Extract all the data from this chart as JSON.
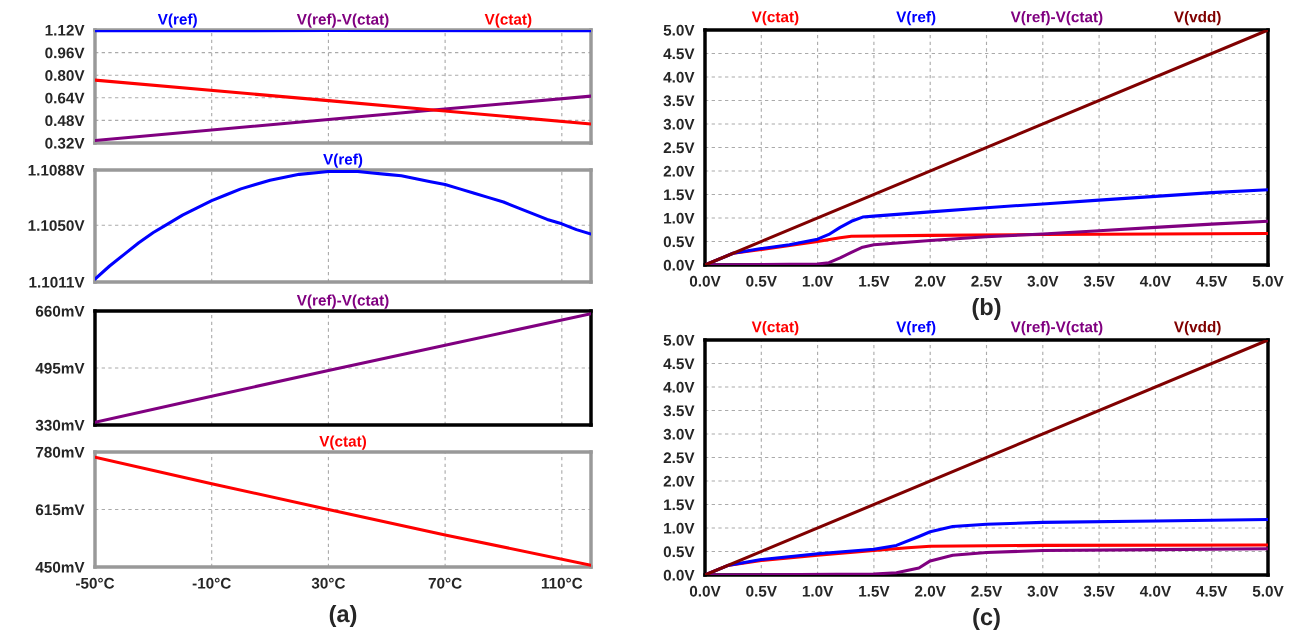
{
  "chart_data": [
    {
      "type": "line",
      "legend": "top",
      "grid": true,
      "line_style": "solid",
      "tick_labels": "y",
      "xlim": [
        -50,
        120
      ],
      "xticks": [
        {
          "value": -50,
          "label": null
        },
        {
          "value": -10,
          "label": null
        },
        {
          "value": 30,
          "label": null
        },
        {
          "value": 70,
          "label": null
        },
        {
          "value": 110,
          "label": null
        }
      ],
      "ylim": [
        0.32,
        1.12
      ],
      "yticks": [
        {
          "value": 0.32,
          "label": "0.32V"
        },
        {
          "value": 0.48,
          "label": "0.48V"
        },
        {
          "value": 0.64,
          "label": "0.64V"
        },
        {
          "value": 0.8,
          "label": "0.80V"
        },
        {
          "value": 0.96,
          "label": "0.96V"
        },
        {
          "value": 1.12,
          "label": "1.12V"
        }
      ],
      "series": [
        {
          "name": "V(ref)",
          "color": "#0000ff",
          "x": [
            -50,
            30,
            120
          ],
          "values": [
            1.115,
            1.116,
            1.115
          ]
        },
        {
          "name": "V(ref)-V(ctat)",
          "color": "#800080",
          "x": [
            -50,
            30,
            66,
            120
          ],
          "values": [
            0.338,
            0.486,
            0.553,
            0.652
          ]
        },
        {
          "name": "V(ctat)",
          "color": "#ff0000",
          "x": [
            -50,
            30,
            66,
            120
          ],
          "values": [
            0.765,
            0.62,
            0.553,
            0.455
          ]
        }
      ]
    },
    {
      "type": "line",
      "legend": "top",
      "grid": true,
      "line_style": "solid",
      "tick_labels": "y",
      "xlim": [
        -50,
        120
      ],
      "xticks": [
        {
          "value": -50,
          "label": null
        },
        {
          "value": -10,
          "label": null
        },
        {
          "value": 30,
          "label": null
        },
        {
          "value": 70,
          "label": null
        },
        {
          "value": 110,
          "label": null
        }
      ],
      "ylim": [
        1.1011,
        1.1088
      ],
      "yticks": [
        {
          "value": 1.1011,
          "label": "1.1011V"
        },
        {
          "value": 1.105,
          "label": "1.1050V"
        },
        {
          "value": 1.1088,
          "label": "1.1088V"
        }
      ],
      "series": [
        {
          "name": "V(ref)",
          "color": "#0000ff",
          "x": [
            -50,
            -45,
            -40,
            -35,
            -30,
            -25,
            -20,
            -15,
            -10,
            -5,
            0,
            5,
            10,
            15,
            20,
            25,
            30,
            35,
            40,
            45,
            50,
            55,
            60,
            65,
            70,
            75,
            80,
            85,
            90,
            95,
            100,
            105,
            110,
            115,
            120
          ],
          "values": [
            1.1013,
            1.1022,
            1.103,
            1.1038,
            1.1045,
            1.1051,
            1.1057,
            1.1062,
            1.1067,
            1.1071,
            1.1075,
            1.1078,
            1.1081,
            1.1083,
            1.1085,
            1.1086,
            1.1087,
            1.1087,
            1.1087,
            1.1086,
            1.1085,
            1.1084,
            1.1082,
            1.108,
            1.1078,
            1.1075,
            1.1072,
            1.1069,
            1.1066,
            1.1062,
            1.1058,
            1.1054,
            1.1051,
            1.1047,
            1.1044
          ]
        }
      ]
    },
    {
      "type": "line",
      "legend": "top",
      "grid": true,
      "line_style": "solid",
      "tick_labels": "y",
      "xlim": [
        -50,
        120
      ],
      "xticks": [
        {
          "value": -50,
          "label": null
        },
        {
          "value": -10,
          "label": null
        },
        {
          "value": 30,
          "label": null
        },
        {
          "value": 70,
          "label": null
        },
        {
          "value": 110,
          "label": null
        }
      ],
      "ylim": [
        330,
        660
      ],
      "yticks": [
        {
          "value": 330,
          "label": "330mV"
        },
        {
          "value": 495,
          "label": "495mV"
        },
        {
          "value": 660,
          "label": "660mV"
        }
      ],
      "series": [
        {
          "name": "V(ref)-V(ctat)",
          "color": "#800080",
          "x": [
            -50,
            -10,
            30,
            70,
            120
          ],
          "values": [
            338,
            413,
            488,
            561,
            652
          ]
        }
      ]
    },
    {
      "type": "line",
      "legend": "top",
      "grid": true,
      "line_style": "solid",
      "xlim": [
        -50,
        120
      ],
      "xticks": [
        {
          "value": -50,
          "label": "-50°C"
        },
        {
          "value": -10,
          "label": "-10°C"
        },
        {
          "value": 30,
          "label": "30°C"
        },
        {
          "value": 70,
          "label": "70°C"
        },
        {
          "value": 110,
          "label": "110°C"
        }
      ],
      "ylim": [
        450,
        780
      ],
      "yticks": [
        {
          "value": 450,
          "label": "450mV"
        },
        {
          "value": 615,
          "label": "615mV"
        },
        {
          "value": 780,
          "label": "780mV"
        }
      ],
      "annotations": [
        "(a)"
      ],
      "series": [
        {
          "name": "V(ctat)",
          "color": "#ff0000",
          "x": [
            -50,
            -10,
            30,
            70,
            120
          ],
          "values": [
            765,
            689,
            615,
            542,
            455
          ]
        }
      ]
    },
    {
      "type": "line",
      "legend": "top",
      "grid": true,
      "line_style": "solid",
      "xlim": [
        0,
        5
      ],
      "xticks": [
        {
          "value": 0,
          "label": "0.0V"
        },
        {
          "value": 0.5,
          "label": "0.5V"
        },
        {
          "value": 1,
          "label": "1.0V"
        },
        {
          "value": 1.5,
          "label": "1.5V"
        },
        {
          "value": 2,
          "label": "2.0V"
        },
        {
          "value": 2.5,
          "label": "2.5V"
        },
        {
          "value": 3,
          "label": "3.0V"
        },
        {
          "value": 3.5,
          "label": "3.5V"
        },
        {
          "value": 4,
          "label": "4.0V"
        },
        {
          "value": 4.5,
          "label": "4.5V"
        },
        {
          "value": 5,
          "label": "5.0V"
        }
      ],
      "ylim": [
        0,
        5
      ],
      "yticks": [
        {
          "value": 0,
          "label": "0.0V"
        },
        {
          "value": 0.5,
          "label": "0.5V"
        },
        {
          "value": 1,
          "label": "1.0V"
        },
        {
          "value": 1.5,
          "label": "1.5V"
        },
        {
          "value": 2,
          "label": "2.0V"
        },
        {
          "value": 2.5,
          "label": "2.5V"
        },
        {
          "value": 3,
          "label": "3.0V"
        },
        {
          "value": 3.5,
          "label": "3.5V"
        },
        {
          "value": 4,
          "label": "4.0V"
        },
        {
          "value": 4.5,
          "label": "4.5V"
        },
        {
          "value": 5,
          "label": "5.0V"
        }
      ],
      "annotations": [
        "(b)"
      ],
      "series": [
        {
          "name": "V(ctat)",
          "color": "#ff0000",
          "x": [
            0,
            0.25,
            0.5,
            1.0,
            1.2,
            1.3,
            2.0,
            3.0,
            4.0,
            5.0
          ],
          "values": [
            0,
            0.25,
            0.33,
            0.5,
            0.58,
            0.61,
            0.63,
            0.65,
            0.66,
            0.67
          ]
        },
        {
          "name": "V(ref)",
          "color": "#0000ff",
          "x": [
            0,
            0.25,
            0.5,
            0.75,
            1.0,
            1.1,
            1.2,
            1.3,
            1.4,
            1.5,
            2.0,
            2.5,
            3.0,
            3.5,
            4.0,
            4.5,
            5.0
          ],
          "values": [
            0,
            0.25,
            0.35,
            0.43,
            0.55,
            0.65,
            0.8,
            0.93,
            1.02,
            1.04,
            1.13,
            1.22,
            1.3,
            1.38,
            1.46,
            1.54,
            1.6
          ]
        },
        {
          "name": "V(ref)-V(ctat)",
          "color": "#800080",
          "x": [
            0,
            1.0,
            1.1,
            1.2,
            1.3,
            1.4,
            1.5,
            2.0,
            2.5,
            3.0,
            3.5,
            4.0,
            4.5,
            5.0
          ],
          "values": [
            0,
            0.02,
            0.05,
            0.15,
            0.27,
            0.38,
            0.43,
            0.52,
            0.6,
            0.66,
            0.73,
            0.8,
            0.87,
            0.93
          ]
        },
        {
          "name": "V(vdd)",
          "color": "#800000",
          "x": [
            0,
            5
          ],
          "values": [
            0,
            5
          ]
        }
      ]
    },
    {
      "type": "line",
      "legend": "top",
      "grid": true,
      "line_style": "solid",
      "xlim": [
        0,
        5
      ],
      "xticks": [
        {
          "value": 0,
          "label": "0.0V"
        },
        {
          "value": 0.5,
          "label": "0.5V"
        },
        {
          "value": 1,
          "label": "1.0V"
        },
        {
          "value": 1.5,
          "label": "1.5V"
        },
        {
          "value": 2,
          "label": "2.0V"
        },
        {
          "value": 2.5,
          "label": "2.5V"
        },
        {
          "value": 3,
          "label": "3.0V"
        },
        {
          "value": 3.5,
          "label": "3.5V"
        },
        {
          "value": 4,
          "label": "4.0V"
        },
        {
          "value": 4.5,
          "label": "4.5V"
        },
        {
          "value": 5,
          "label": "5.0V"
        }
      ],
      "ylim": [
        0,
        5
      ],
      "yticks": [
        {
          "value": 0,
          "label": "0.0V"
        },
        {
          "value": 0.5,
          "label": "0.5V"
        },
        {
          "value": 1,
          "label": "1.0V"
        },
        {
          "value": 1.5,
          "label": "1.5V"
        },
        {
          "value": 2,
          "label": "2.0V"
        },
        {
          "value": 2.5,
          "label": "2.5V"
        },
        {
          "value": 3,
          "label": "3.0V"
        },
        {
          "value": 3.5,
          "label": "3.5V"
        },
        {
          "value": 4,
          "label": "4.0V"
        },
        {
          "value": 4.5,
          "label": "4.5V"
        },
        {
          "value": 5,
          "label": "5.0V"
        }
      ],
      "annotations": [
        "(c)"
      ],
      "series": [
        {
          "name": "V(ctat)",
          "color": "#ff0000",
          "x": [
            0,
            0.2,
            0.5,
            1.0,
            1.5,
            1.8,
            2.0,
            3.0,
            5.0
          ],
          "values": [
            0,
            0.2,
            0.31,
            0.42,
            0.52,
            0.58,
            0.61,
            0.63,
            0.64
          ]
        },
        {
          "name": "V(ref)",
          "color": "#0000ff",
          "x": [
            0,
            0.2,
            0.5,
            1.0,
            1.5,
            1.7,
            1.9,
            2.0,
            2.2,
            2.5,
            3.0,
            4.0,
            5.0
          ],
          "values": [
            0,
            0.2,
            0.33,
            0.45,
            0.55,
            0.63,
            0.82,
            0.92,
            1.03,
            1.08,
            1.12,
            1.15,
            1.18
          ]
        },
        {
          "name": "V(ref)-V(ctat)",
          "color": "#800080",
          "x": [
            0,
            1.5,
            1.7,
            1.9,
            2.0,
            2.2,
            2.5,
            3.0,
            4.0,
            5.0
          ],
          "values": [
            0,
            0.02,
            0.05,
            0.15,
            0.3,
            0.42,
            0.48,
            0.52,
            0.54,
            0.56
          ]
        },
        {
          "name": "V(vdd)",
          "color": "#800000",
          "x": [
            0,
            5
          ],
          "values": [
            0,
            5
          ]
        }
      ]
    }
  ]
}
